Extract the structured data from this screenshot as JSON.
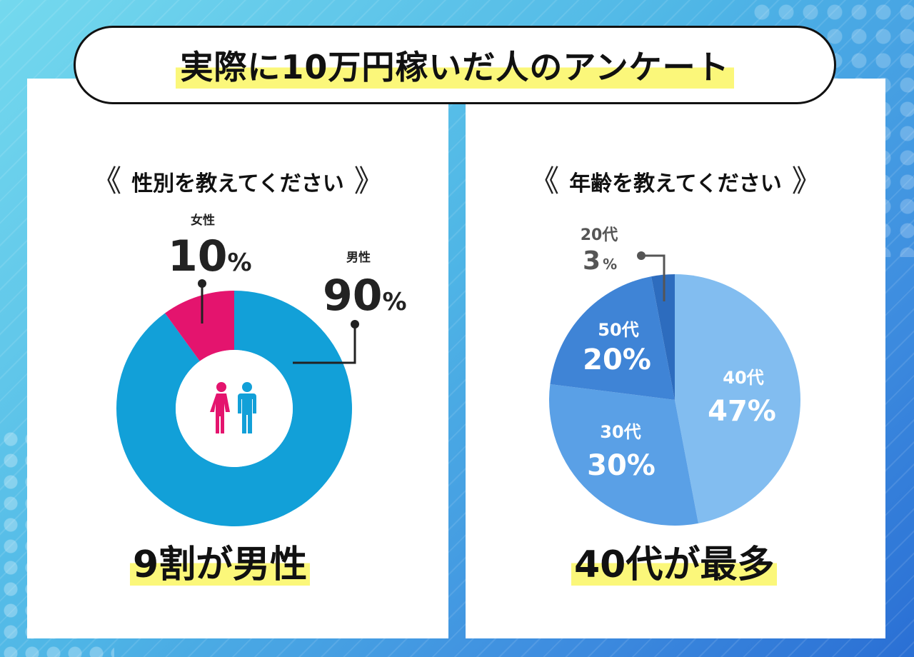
{
  "title": "実際に10万円稼いだ人のアンケート",
  "left": {
    "question": "性別を教えてください",
    "conclusion": "9割が男性"
  },
  "right": {
    "question": "年齢を教えてください",
    "conclusion": "40代が最多"
  },
  "icons": {
    "question_open": "double-chevron-left",
    "question_close": "double-chevron-right",
    "center": "female-male-person-icons"
  },
  "chart_data": [
    {
      "type": "donut",
      "series": [
        {
          "name": "男性",
          "value": 90,
          "value_label": "90",
          "unit": "%",
          "color": "#12a0d8"
        },
        {
          "name": "女性",
          "value": 10,
          "value_label": "10",
          "unit": "%",
          "color": "#e4146e"
        }
      ]
    },
    {
      "type": "pie",
      "series": [
        {
          "name": "40代",
          "value": 47,
          "value_label": "47%",
          "color": "#82bdf0"
        },
        {
          "name": "30代",
          "value": 30,
          "value_label": "30%",
          "color": "#5aa0e6"
        },
        {
          "name": "50代",
          "value": 20,
          "value_label": "20%",
          "color": "#3f84d6"
        },
        {
          "name": "20代",
          "value": 3,
          "value_label": "3",
          "unit": "%",
          "color": "#2d6cbe"
        }
      ]
    }
  ],
  "colors": {
    "highlight": "#fbf77a",
    "female_icon": "#e4146e",
    "male_icon": "#12a0d8",
    "leader": "#222222",
    "leader_small": "#555555"
  }
}
